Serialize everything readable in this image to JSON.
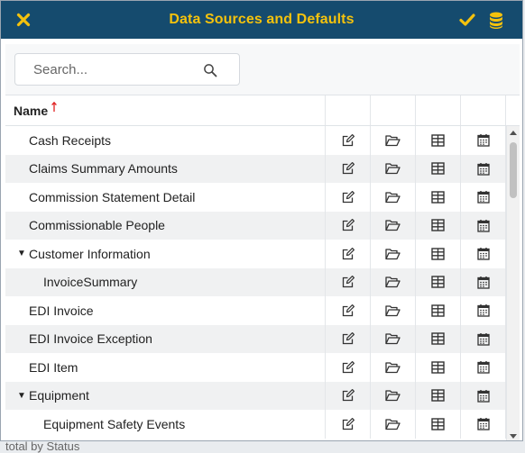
{
  "dialog": {
    "title": "Data Sources and Defaults",
    "close_icon": "close-icon",
    "confirm_icon": "check-icon",
    "database_icon": "database-icon"
  },
  "search": {
    "placeholder": "Search...",
    "value": ""
  },
  "grid": {
    "columns": {
      "name": "Name",
      "sort": "ascending"
    },
    "row_action_icons": [
      "edit-icon",
      "folder-open-icon",
      "grid-icon",
      "calendar-icon"
    ],
    "rows": [
      {
        "label": "Cash Receipts",
        "level": 0,
        "expandable": false
      },
      {
        "label": "Claims Summary Amounts",
        "level": 0,
        "expandable": false
      },
      {
        "label": "Commission Statement Detail",
        "level": 0,
        "expandable": false
      },
      {
        "label": "Commissionable People",
        "level": 0,
        "expandable": false
      },
      {
        "label": "Customer Information",
        "level": 0,
        "expandable": true,
        "expanded": true
      },
      {
        "label": "InvoiceSummary",
        "level": 1,
        "expandable": false
      },
      {
        "label": "EDI Invoice",
        "level": 0,
        "expandable": false
      },
      {
        "label": "EDI Invoice Exception",
        "level": 0,
        "expandable": false
      },
      {
        "label": "EDI Item",
        "level": 0,
        "expandable": false
      },
      {
        "label": "Equipment",
        "level": 0,
        "expandable": true,
        "expanded": true
      },
      {
        "label": "Equipment Safety Events",
        "level": 1,
        "expandable": false
      }
    ]
  },
  "background_peek_text": "total by Status",
  "colors": {
    "titlebar": "#154b6e",
    "title_text": "#f4c20d",
    "sort_arrow": "#e02020",
    "alt_row": "#f0f1f2"
  }
}
